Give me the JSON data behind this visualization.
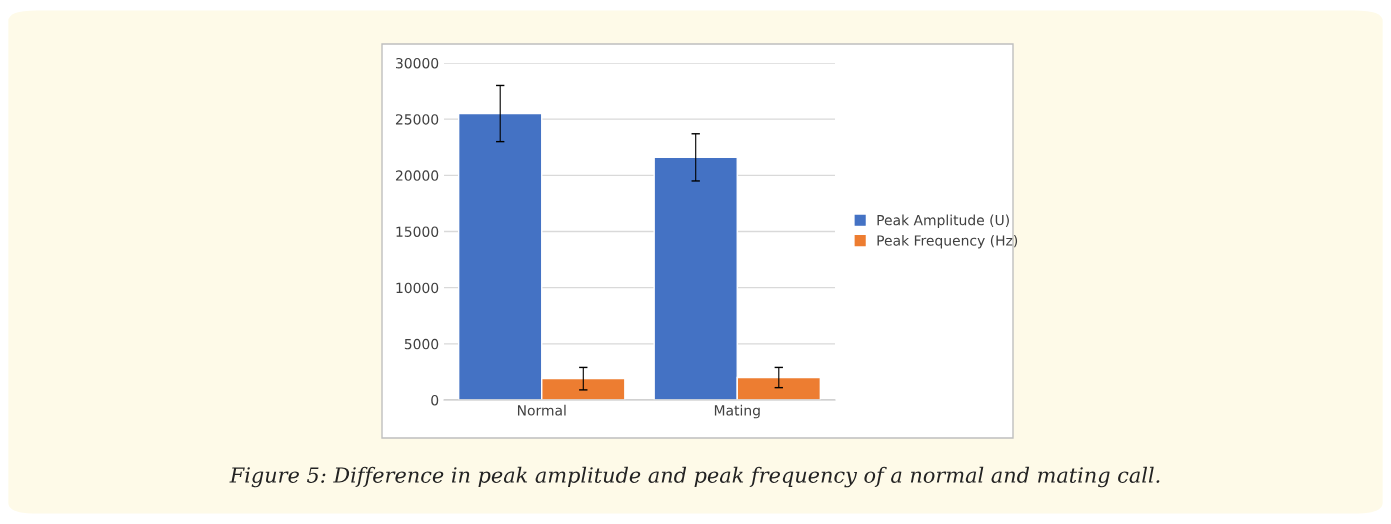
{
  "chart_data": {
    "type": "bar",
    "categories": [
      "Normal",
      "Mating"
    ],
    "series": [
      {
        "name": "Peak Amplitude (U)",
        "color": "#4472c4",
        "values": [
          25500,
          21600
        ],
        "errors": [
          2500,
          2100
        ]
      },
      {
        "name": "Peak Frequency (Hz)",
        "color": "#ed7d31",
        "values": [
          1900,
          2000
        ],
        "errors": [
          1000,
          900
        ]
      }
    ],
    "ylim": [
      0,
      30000
    ],
    "yticks": [
      0,
      5000,
      10000,
      15000,
      20000,
      25000,
      30000
    ],
    "grid": "y",
    "legend": "right",
    "annotations": [
      "Figure 5: Difference in peak amplitude and peak frequency of a normal and mating call."
    ]
  }
}
